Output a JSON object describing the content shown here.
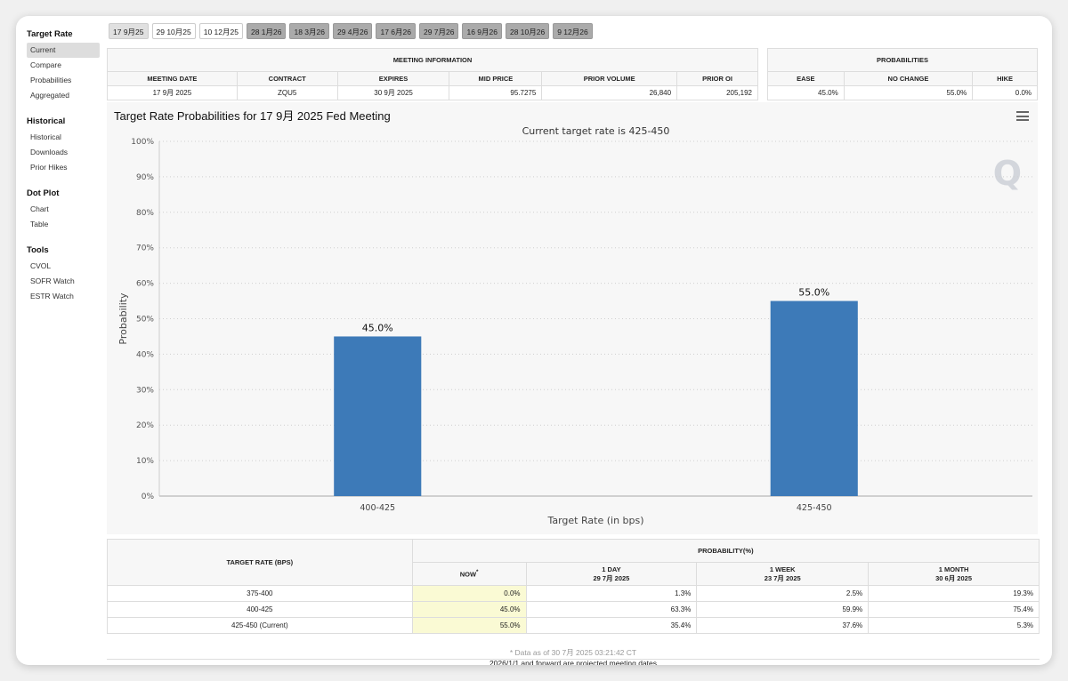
{
  "sidebar": {
    "sections": [
      {
        "title": "Target Rate",
        "items": [
          "Current",
          "Compare",
          "Probabilities",
          "Aggregated"
        ]
      },
      {
        "title": "Historical",
        "items": [
          "Historical",
          "Downloads",
          "Prior Hikes"
        ]
      },
      {
        "title": "Dot Plot",
        "items": [
          "Chart",
          "Table"
        ]
      },
      {
        "title": "Tools",
        "items": [
          "CVOL",
          "SOFR Watch",
          "ESTR Watch"
        ]
      }
    ]
  },
  "tabs": [
    "17 9月25",
    "29 10月25",
    "10 12月25",
    "28 1月26",
    "18 3月26",
    "29 4月26",
    "17 6月26",
    "29 7月26",
    "16 9月26",
    "28 10月26",
    "9 12月26"
  ],
  "meeting_info": {
    "section_title": "MEETING INFORMATION",
    "headers": [
      "MEETING DATE",
      "CONTRACT",
      "EXPIRES",
      "MID PRICE",
      "PRIOR VOLUME",
      "PRIOR OI"
    ],
    "values": [
      "17 9月 2025",
      "ZQU5",
      "30 9月 2025",
      "95.7275",
      "26,840",
      "205,192"
    ]
  },
  "probabilities": {
    "section_title": "PROBABILITIES",
    "headers": [
      "EASE",
      "NO CHANGE",
      "HIKE"
    ],
    "values": [
      "45.0%",
      "55.0%",
      "0.0%"
    ]
  },
  "chart": {
    "title": "Target Rate Probabilities for 17 9月 2025 Fed Meeting",
    "logo": "Q"
  },
  "chart_data": {
    "type": "bar",
    "title": "Current target rate is 425-450",
    "xlabel": "Target Rate (in bps)",
    "ylabel": "Probability",
    "categories": [
      "400-425",
      "425-450"
    ],
    "values": [
      45.0,
      55.0
    ],
    "data_labels": [
      "45.0%",
      "55.0%"
    ],
    "ylim": [
      0,
      100
    ],
    "yticks": [
      "0%",
      "10%",
      "20%",
      "30%",
      "40%",
      "50%",
      "60%",
      "70%",
      "80%",
      "90%",
      "100%"
    ],
    "grid": true,
    "bar_color": "#3d7ab8"
  },
  "prob_table": {
    "target_header": "TARGET RATE (BPS)",
    "prob_header": "PROBABILITY(%)",
    "columns": [
      {
        "line1": "NOW",
        "sup": "*",
        "line2": ""
      },
      {
        "line1": "1 DAY",
        "line2": "29 7月 2025"
      },
      {
        "line1": "1 WEEK",
        "line2": "23 7月 2025"
      },
      {
        "line1": "1 MONTH",
        "line2": "30 6月 2025"
      }
    ],
    "rows": [
      {
        "rate": "375-400",
        "vals": [
          "0.0%",
          "1.3%",
          "2.5%",
          "19.3%"
        ]
      },
      {
        "rate": "400-425",
        "vals": [
          "45.0%",
          "63.3%",
          "59.9%",
          "75.4%"
        ]
      },
      {
        "rate": "425-450 (Current)",
        "vals": [
          "55.0%",
          "35.4%",
          "37.6%",
          "5.3%"
        ]
      }
    ],
    "data_note": "* Data as of 30 7月 2025 03:21:42 CT",
    "footer": "2026/1/1 and forward are projected meeting dates"
  }
}
